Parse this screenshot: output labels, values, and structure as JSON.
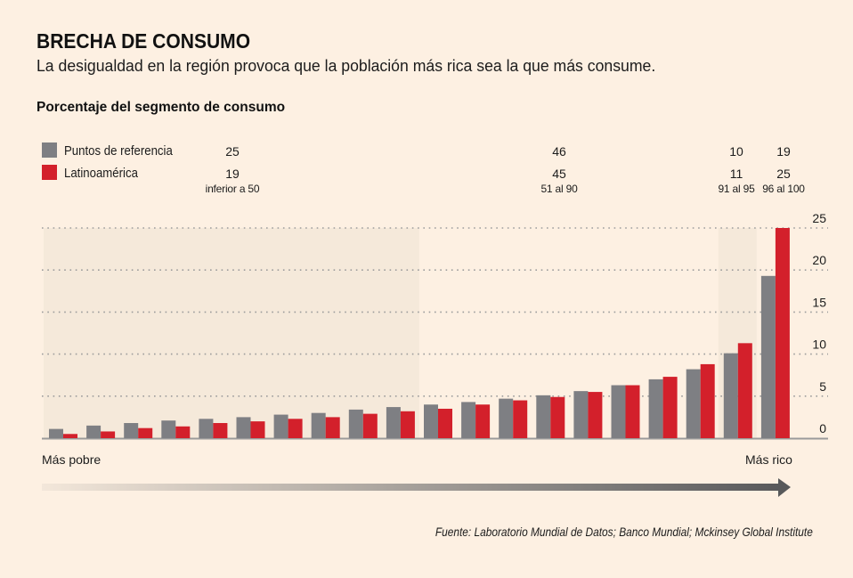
{
  "header": {
    "title": "BRECHA DE CONSUMO",
    "subtitle": "La desigualdad en la región provoca que la población más rica sea la que más consume.",
    "chart_label": "Porcentaje del segmento de consumo"
  },
  "legend": [
    {
      "label": "Puntos de referencia",
      "color": "#7e7f83"
    },
    {
      "label": "Latinoamérica",
      "color": "#d3202b"
    }
  ],
  "segments": [
    {
      "label": "inferior a 50",
      "referencia": "25",
      "latam": "19",
      "bars": 10
    },
    {
      "label": "51 al 90",
      "referencia": "46",
      "latam": "45",
      "bars": 8
    },
    {
      "label": "91 al 95",
      "referencia": "10",
      "latam": "11",
      "bars": 1
    },
    {
      "label": "96 al 100",
      "referencia": "19",
      "latam": "25",
      "bars": 1
    }
  ],
  "axis": {
    "left_label": "Más pobre",
    "right_label": "Más rico"
  },
  "source": "Fuente: Laboratorio Mundial de Datos; Banco Mundial; Mckinsey Global Institute",
  "colors": {
    "background": "#fdf0e2",
    "shade": "#f5e9da",
    "grid": "#9c9c9c",
    "arrow": "#58595b"
  },
  "chart_data": {
    "type": "bar",
    "title": "BRECHA DE CONSUMO",
    "subtitle": "Porcentaje del segmento de consumo",
    "x": [
      1,
      2,
      3,
      4,
      5,
      6,
      7,
      8,
      9,
      10,
      11,
      12,
      13,
      14,
      15,
      16,
      17,
      18,
      19,
      20
    ],
    "series": [
      {
        "name": "Puntos de referencia",
        "values": [
          1.1,
          1.5,
          1.8,
          2.1,
          2.3,
          2.5,
          2.8,
          3.0,
          3.4,
          3.7,
          4.0,
          4.3,
          4.7,
          5.1,
          5.6,
          6.3,
          7.0,
          8.2,
          10.1,
          19.3
        ]
      },
      {
        "name": "Latinoamérica",
        "values": [
          0.5,
          0.8,
          1.2,
          1.4,
          1.8,
          2.0,
          2.3,
          2.5,
          2.9,
          3.2,
          3.5,
          4.0,
          4.5,
          4.9,
          5.5,
          6.3,
          7.3,
          8.8,
          11.3,
          25.0
        ]
      }
    ],
    "xlabel": "Más pobre → Más rico",
    "ylabel": "",
    "ylim": [
      0,
      25
    ],
    "yticks": [
      0,
      5,
      10,
      15,
      20,
      25
    ],
    "y_axis_side": "right",
    "grid": true,
    "legend_position": "top-left"
  }
}
